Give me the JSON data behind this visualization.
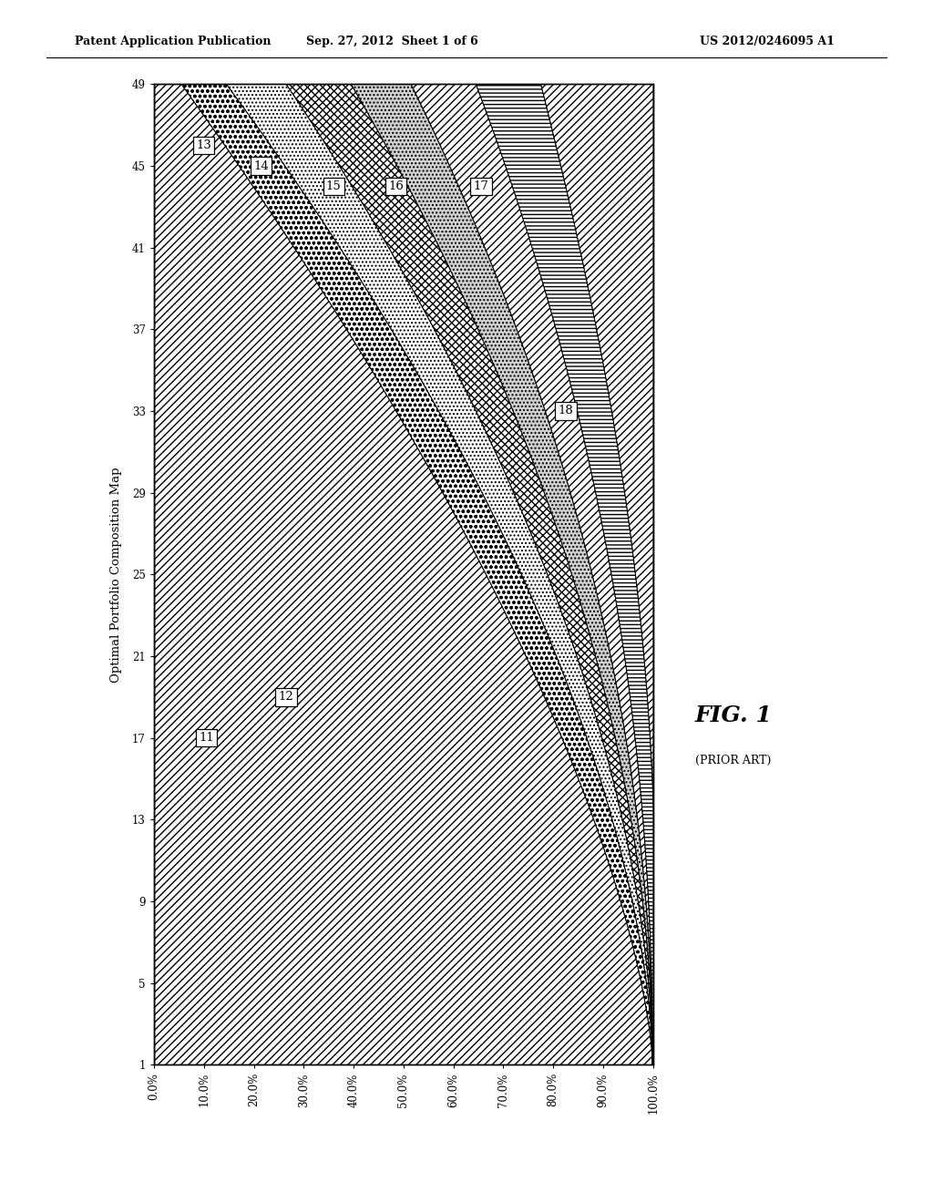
{
  "header_left": "Patent Application Publication",
  "header_center": "Sep. 27, 2012  Sheet 1 of 6",
  "header_right": "US 2012/0246095 A1",
  "fig_label": "FIG. 1",
  "fig_sublabel": "(PRIOR ART)",
  "ylabel": "Optimal Portfolio Composition Map",
  "yticks": [
    1,
    5,
    9,
    13,
    17,
    21,
    25,
    29,
    33,
    37,
    41,
    45,
    49
  ],
  "xticks": [
    0.0,
    0.1,
    0.2,
    0.3,
    0.4,
    0.5,
    0.6,
    0.7,
    0.8,
    0.9,
    1.0
  ],
  "xtick_labels": [
    "0.0%",
    "10.0%",
    "20.0%",
    "30.0%",
    "40.0%",
    "50.0%",
    "60.0%",
    "70.0%",
    "80.0%",
    "90.0%",
    "100.0%"
  ],
  "band_labels": [
    "11",
    "12",
    "13",
    "14",
    "15",
    "16",
    "17",
    "18"
  ],
  "background_color": "#ffffff",
  "boundaries_top": [
    0.0,
    0.055,
    0.145,
    0.265,
    0.395,
    0.515,
    0.645,
    0.775,
    1.0
  ],
  "boundaries_bottom": [
    0.0,
    0.999,
    0.999,
    0.999,
    0.999,
    0.999,
    0.999,
    0.999,
    1.0
  ],
  "label_positions": [
    [
      0.105,
      17,
      "11"
    ],
    [
      0.265,
      19,
      "12"
    ],
    [
      0.1,
      46,
      "13"
    ],
    [
      0.215,
      45,
      "14"
    ],
    [
      0.36,
      44,
      "15"
    ],
    [
      0.485,
      44,
      "16"
    ],
    [
      0.655,
      44,
      "17"
    ],
    [
      0.825,
      33,
      "18"
    ]
  ]
}
